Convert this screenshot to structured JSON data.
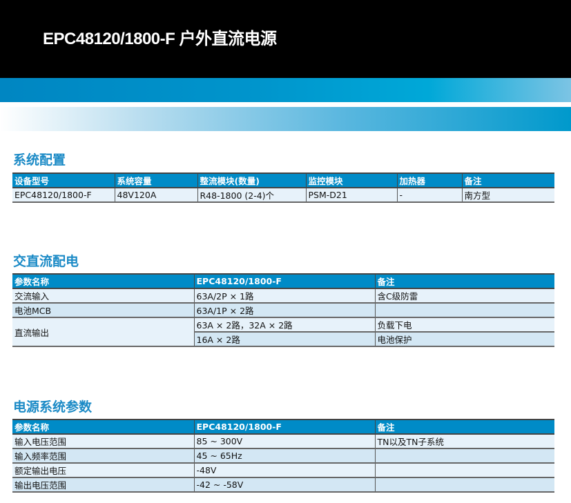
{
  "header": {
    "title": "EPC48120/1800-F 户外直流电源"
  },
  "sections": [
    {
      "title": "系统配置",
      "columns": [
        "设备型号",
        "系统容量",
        "整流模块(数量)",
        "监控模块",
        "加热器",
        "备注"
      ],
      "rows": [
        [
          "EPC48120/1800-F",
          "48V120A",
          "R48-1800 (2-4)个",
          "PSM-D21",
          "-",
          "南方型"
        ]
      ]
    },
    {
      "title": "交直流配电",
      "columns": [
        "参数名称",
        "EPC48120/1800-F",
        "备注"
      ],
      "rows": [
        [
          "交流输入",
          "63A/2P × 1路",
          "含C级防雷"
        ],
        [
          "电池MCB",
          "63A/1P × 2路",
          ""
        ],
        [
          "直流输出",
          "63A × 2路，32A × 2路",
          "负载下电"
        ],
        [
          "",
          "16A × 2路",
          "电池保护"
        ]
      ]
    },
    {
      "title": "电源系统参数",
      "columns": [
        "参数名称",
        "EPC48120/1800-F",
        "备注"
      ],
      "rows": [
        [
          "输入电压范围",
          "85 ~ 300V",
          "TN以及TN子系统"
        ],
        [
          "输入频率范围",
          "45 ~ 65Hz",
          ""
        ],
        [
          "额定输出电压",
          "-48V",
          ""
        ],
        [
          "输出电压范围",
          "-42 ~ -58V",
          ""
        ]
      ]
    }
  ],
  "colors": {
    "header_bg": "#000000",
    "accent": "#008bc7",
    "section_title": "#1b8ac6",
    "row_light": "#e7f2fa",
    "row_dark": "#d3e7f4"
  }
}
